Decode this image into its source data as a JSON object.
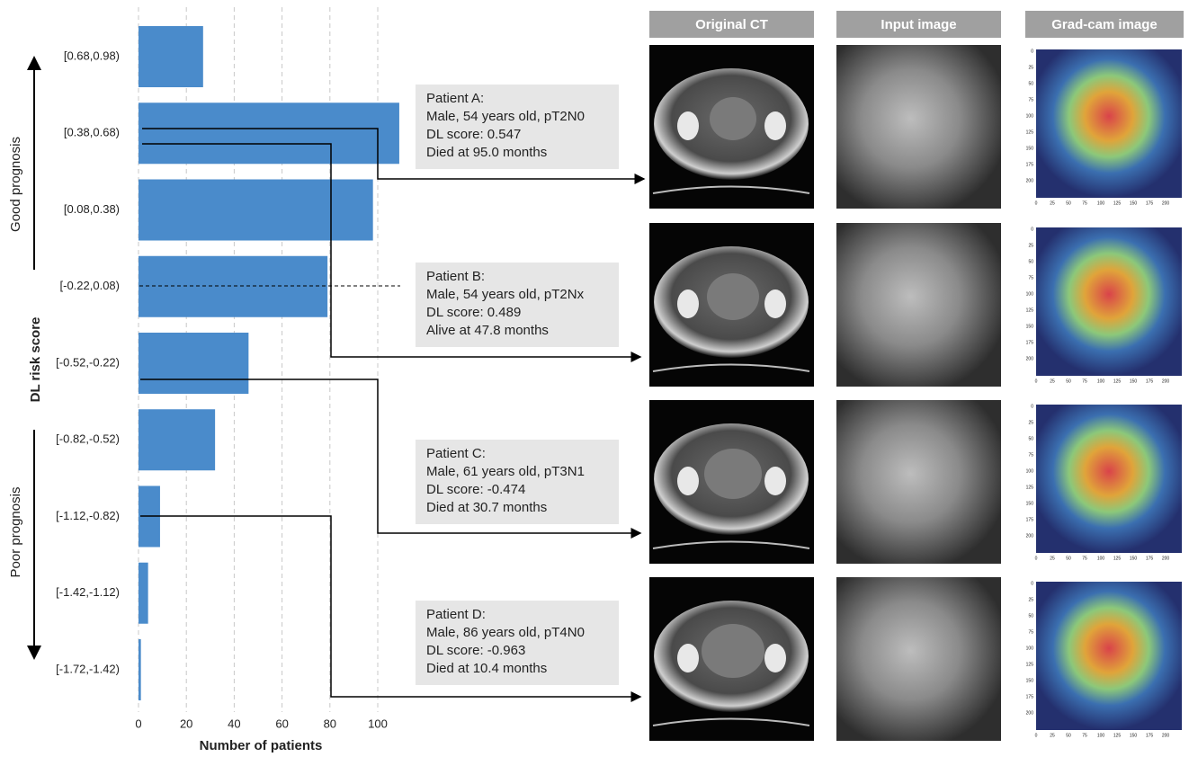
{
  "chart_data": {
    "type": "bar",
    "orientation": "horizontal",
    "categories": [
      "[0.68,0.98)",
      "[0.38,0.68)",
      "[0.08,0.38)",
      "[-0.22,0.08)",
      "[-0.52,-0.22)",
      "[-0.82,-0.52)",
      "[-1.12,-0.82)",
      "[-1.42,-1.12)",
      "[-1.72,-1.42)"
    ],
    "values": [
      27,
      109,
      98,
      79,
      46,
      32,
      9,
      4,
      1
    ],
    "color": "#4a8bcb",
    "xlim": [
      0,
      110
    ],
    "xticks": [
      0,
      20,
      40,
      60,
      80,
      100
    ],
    "grid": true,
    "xlabel": "Number of patients",
    "ylabel": "DL risk score",
    "annotations": [
      "Good prognosis",
      "Poor prognosis"
    ]
  },
  "panels": {
    "headers": [
      "Original CT",
      "Input image",
      "Grad-cam image"
    ],
    "patients": [
      {
        "title": "Patient A:",
        "lines": [
          "Male, 54 years old, pT2N0",
          "DL score: 0.547",
          "Died at 95.0 months"
        ]
      },
      {
        "title": "Patient B:",
        "lines": [
          "Male, 54 years old, pT2Nx",
          "DL score: 0.489",
          "Alive at 47.8 months"
        ]
      },
      {
        "title": "Patient C:",
        "lines": [
          "Male, 61 years old, pT3N1",
          "DL score: -0.474",
          "Died at 30.7 months"
        ]
      },
      {
        "title": "Patient D:",
        "lines": [
          "Male, 86 years old, pT4N0",
          "DL score: -0.963",
          "Died at 10.4 months"
        ]
      }
    ],
    "gradcam_ticks": [
      0,
      25,
      50,
      75,
      100,
      125,
      150,
      175,
      200
    ]
  }
}
